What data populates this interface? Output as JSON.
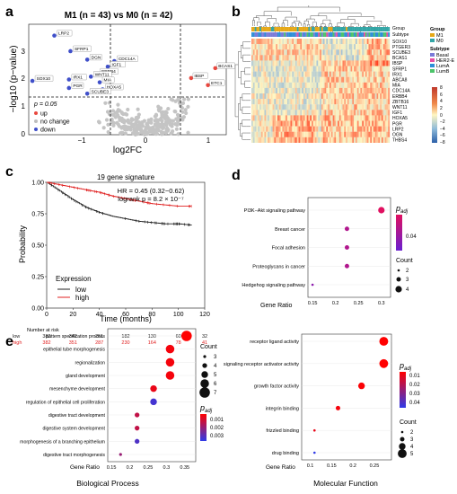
{
  "panels": {
    "a": {
      "label": "a",
      "title": "M1 (n = 43) vs M0 (n = 42)",
      "xlabel": "log2FC",
      "ylabel": "−log10 (p−value)",
      "xticks": [
        "−1",
        "0",
        "1"
      ],
      "yticks": [
        "0",
        "1",
        "2",
        "3"
      ],
      "pval_label": "p = 0.05",
      "legend": [
        {
          "label": "up",
          "color": "#e8473e"
        },
        {
          "label": "no change",
          "color": "#bdbdbd"
        },
        {
          "label": "down",
          "color": "#3f4fc9"
        }
      ],
      "gene_labels": [
        "LRP2",
        "SFRP1",
        "DGN",
        "CDC14A",
        "IGF1",
        "ERBB4",
        "IRX1",
        "WNT11",
        "MIA",
        "PGR",
        "HOXA5",
        "SOX10",
        "SCUBE3",
        "IBSP",
        "BCAS1",
        "ETC1"
      ]
    },
    "b": {
      "label": "b",
      "genes": [
        "SOX10",
        "PTGER3",
        "SCUBE3",
        "BCAS1",
        "IBSP",
        "SFRP1",
        "IRX1",
        "ABCA8",
        "MIA",
        "CDC14A",
        "ERBB4",
        "ZBTB16",
        "WNT11",
        "IGF1",
        "HOXA5",
        "PGR",
        "LRP2",
        "OGN",
        "THBS4"
      ],
      "legend_group_title": "Group",
      "group_items": [
        {
          "label": "M1",
          "color": "#e6a817"
        },
        {
          "label": "M0",
          "color": "#33a6a6"
        }
      ],
      "legend_subtype_title": "Subtype",
      "subtype_items": [
        {
          "label": "Basal",
          "color": "#7b7bd8"
        },
        {
          "label": "HER2-E",
          "color": "#e94fa3"
        },
        {
          "label": "LumA",
          "color": "#2f8fd8"
        },
        {
          "label": "LumB",
          "color": "#4cc46a"
        }
      ],
      "row_labels": [
        "Group",
        "Subtype"
      ],
      "scale_ticks": [
        "8",
        "6",
        "4",
        "2",
        "0",
        "−2",
        "−4",
        "−6",
        "−8"
      ]
    },
    "c": {
      "label": "c",
      "title": "19 gene signature",
      "stats_hr": "HR = 0.45 (0.32−0.62)",
      "stats_logrank": "logrank p = 8.2 × 10⁻⁷",
      "ylabel": "Probability",
      "xlabel": "Time (months)",
      "legend_title": "Expression",
      "legend_items": [
        {
          "label": "low",
          "color": "#222222"
        },
        {
          "label": "high",
          "color": "#e02020"
        }
      ],
      "risk_title": "Number at risk",
      "risk_rows": [
        {
          "label": "low",
          "color": "#222222",
          "values": [
            "382",
            "342",
            "251",
            "182",
            "130",
            "60",
            "32"
          ]
        },
        {
          "label": "high",
          "color": "#e02020",
          "values": [
            "382",
            "351",
            "287",
            "230",
            "164",
            "78",
            "41"
          ]
        }
      ]
    },
    "d": {
      "label": "d",
      "legend_padj": "p",
      "legend_padj_sub": "adj",
      "legend_padj_tick": "0.04",
      "legend_count_title": "Count",
      "count_items": [
        "2",
        "3",
        "4"
      ],
      "xlabel": "Gene Ratio"
    },
    "e": {
      "label": "e",
      "bp_caption": "Biological Process",
      "mf_caption": "Molecular Function",
      "xlabel": "Gene Ratio",
      "bp_count_title": "Count",
      "bp_counts": [
        "3",
        "4",
        "5",
        "6",
        "7"
      ],
      "bp_padj_ticks": [
        "0.001",
        "0.002",
        "0.003"
      ],
      "mf_count_title": "Count",
      "mf_counts": [
        "2",
        "3",
        "4",
        "5"
      ],
      "mf_padj_ticks": [
        "0.01",
        "0.02",
        "0.03",
        "0.04"
      ]
    }
  },
  "chart_data": [
    {
      "panel": "a",
      "type": "scatter",
      "xlim": [
        -1.6,
        1.1
      ],
      "ylim": [
        0,
        3.9
      ],
      "thresholds": {
        "x": [
          -0.58,
          0.58
        ],
        "y": 1.3
      },
      "highlighted": [
        {
          "gene": "LRP2",
          "x": -1.25,
          "y": 3.5,
          "status": "down"
        },
        {
          "gene": "SFRP1",
          "x": -1.03,
          "y": 2.95,
          "status": "down"
        },
        {
          "gene": "DGN",
          "x": -0.8,
          "y": 2.65,
          "status": "down"
        },
        {
          "gene": "CDC14A",
          "x": -0.43,
          "y": 2.6,
          "status": "down"
        },
        {
          "gene": "IGF1",
          "x": -0.52,
          "y": 2.4,
          "status": "down"
        },
        {
          "gene": "ERBB4",
          "x": -0.66,
          "y": 2.15,
          "status": "down"
        },
        {
          "gene": "IRX1",
          "x": -1.05,
          "y": 1.95,
          "status": "down"
        },
        {
          "gene": "WNT11",
          "x": -0.75,
          "y": 2.05,
          "status": "down"
        },
        {
          "gene": "MIA",
          "x": -0.63,
          "y": 1.85,
          "status": "down"
        },
        {
          "gene": "PGR",
          "x": -1.05,
          "y": 1.65,
          "status": "down"
        },
        {
          "gene": "HOXA5",
          "x": -0.59,
          "y": 1.6,
          "status": "down"
        },
        {
          "gene": "SOX10",
          "x": -1.55,
          "y": 1.9,
          "status": "down"
        },
        {
          "gene": "SCUBE3",
          "x": -0.8,
          "y": 1.45,
          "status": "down"
        },
        {
          "gene": "IBSP",
          "x": 0.62,
          "y": 2.0,
          "status": "up"
        },
        {
          "gene": "BCAS1",
          "x": 0.95,
          "y": 2.35,
          "status": "up"
        },
        {
          "gene": "ETC1",
          "x": 0.85,
          "y": 1.75,
          "status": "up"
        }
      ]
    },
    {
      "panel": "c",
      "type": "line",
      "xlim": [
        0,
        120
      ],
      "ylim": [
        0,
        1
      ],
      "x_ticks": [
        0,
        20,
        40,
        60,
        80,
        100,
        120
      ],
      "y_ticks": [
        0,
        0.25,
        0.5,
        0.75,
        1.0
      ],
      "series": [
        {
          "name": "low",
          "color": "#222222",
          "x": [
            0,
            10,
            20,
            30,
            40,
            50,
            60,
            70,
            80,
            90,
            100,
            110
          ],
          "y": [
            1.0,
            0.93,
            0.86,
            0.8,
            0.76,
            0.73,
            0.71,
            0.69,
            0.68,
            0.67,
            0.67,
            0.66
          ]
        },
        {
          "name": "high",
          "color": "#e02020",
          "x": [
            0,
            10,
            20,
            30,
            40,
            50,
            60,
            70,
            80,
            90,
            100,
            110
          ],
          "y": [
            1.0,
            0.98,
            0.96,
            0.94,
            0.92,
            0.89,
            0.87,
            0.85,
            0.83,
            0.82,
            0.81,
            0.81
          ]
        }
      ]
    },
    {
      "panel": "d",
      "type": "scatter",
      "xlim": [
        0.14,
        0.32
      ],
      "x_ticks": [
        0.15,
        0.2,
        0.25,
        0.3
      ],
      "categories": [
        "PI3K−Akt signaling pathway",
        "Breast cancer",
        "Focal adhesion",
        "Proteoglycans in cancer",
        "Hedgehog signaling pathway"
      ],
      "gene_ratio": [
        0.3,
        0.225,
        0.225,
        0.225,
        0.15
      ],
      "count": [
        4,
        3,
        3,
        3,
        2
      ],
      "padj_level": [
        0.0,
        0.4,
        0.4,
        0.4,
        0.7
      ]
    },
    {
      "panel": "e-bp",
      "type": "scatter",
      "xlim": [
        0.14,
        0.38
      ],
      "x_ticks": [
        0.15,
        0.2,
        0.25,
        0.3,
        0.35
      ],
      "categories": [
        "pattern specification process",
        "epithelial tube morphogenesis",
        "regionalization",
        "gland development",
        "mesenchyme development",
        "regulation of epithelial cell proliferation",
        "digestive tract development",
        "digestive system development",
        "morphogenesis of a branching epithelium",
        "digestive tract morphogenesis"
      ],
      "gene_ratio": [
        0.355,
        0.31,
        0.31,
        0.31,
        0.265,
        0.265,
        0.22,
        0.22,
        0.22,
        0.175
      ],
      "count": [
        7,
        6,
        6,
        6,
        5,
        5,
        4,
        4,
        4,
        3
      ],
      "padj_level": [
        0.0,
        0.05,
        0.05,
        0.05,
        0.1,
        0.9,
        0.3,
        0.3,
        0.85,
        0.5
      ]
    },
    {
      "panel": "e-mf",
      "type": "scatter",
      "xlim": [
        0.08,
        0.29
      ],
      "x_ticks": [
        0.1,
        0.15,
        0.2,
        0.25
      ],
      "categories": [
        "receptor ligand activity",
        "signaling receptor activator activity",
        "growth factor activity",
        "integrin binding",
        "frizzled binding",
        "drug binding"
      ],
      "gene_ratio": [
        0.272,
        0.272,
        0.22,
        0.165,
        0.11,
        0.11
      ],
      "count": [
        5,
        5,
        4,
        3,
        2,
        2
      ],
      "padj_level": [
        0.0,
        0.0,
        0.02,
        0.05,
        0.1,
        1.0
      ]
    }
  ]
}
